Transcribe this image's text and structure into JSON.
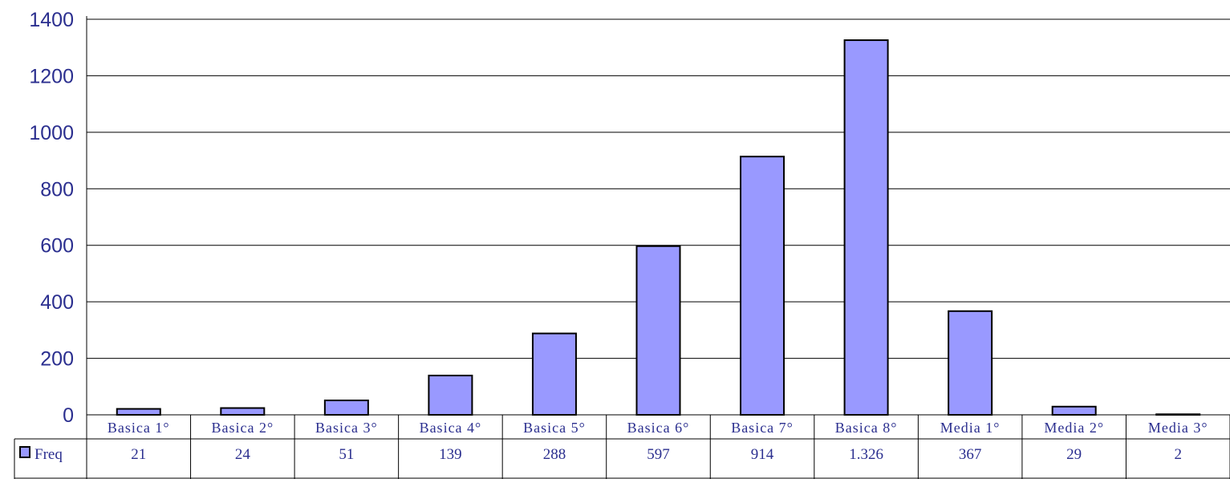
{
  "chart_data": {
    "type": "bar",
    "categories": [
      "Basica 1°",
      "Basica 2°",
      "Basica 3°",
      "Basica 4°",
      "Basica 5°",
      "Basica 6°",
      "Basica 7°",
      "Basica 8°",
      "Media 1°",
      "Media 2°",
      "Media 3°"
    ],
    "series": [
      {
        "name": "Freq",
        "values": [
          21,
          24,
          51,
          139,
          288,
          597,
          914,
          1326,
          367,
          29,
          2
        ],
        "value_labels": [
          "21",
          "24",
          "51",
          "139",
          "288",
          "597",
          "914",
          "1.326",
          "367",
          "29",
          "2"
        ],
        "color": "#9999ff"
      }
    ],
    "ylim": [
      0,
      1400
    ],
    "yticks": [
      0,
      200,
      400,
      600,
      800,
      1000,
      1200,
      1400
    ],
    "grid": true,
    "legend": "data-table-left",
    "colors": {
      "bar_fill": "#9999ff",
      "bar_stroke": "#000000",
      "text": "#2b2f8f",
      "grid": "#000000"
    }
  }
}
